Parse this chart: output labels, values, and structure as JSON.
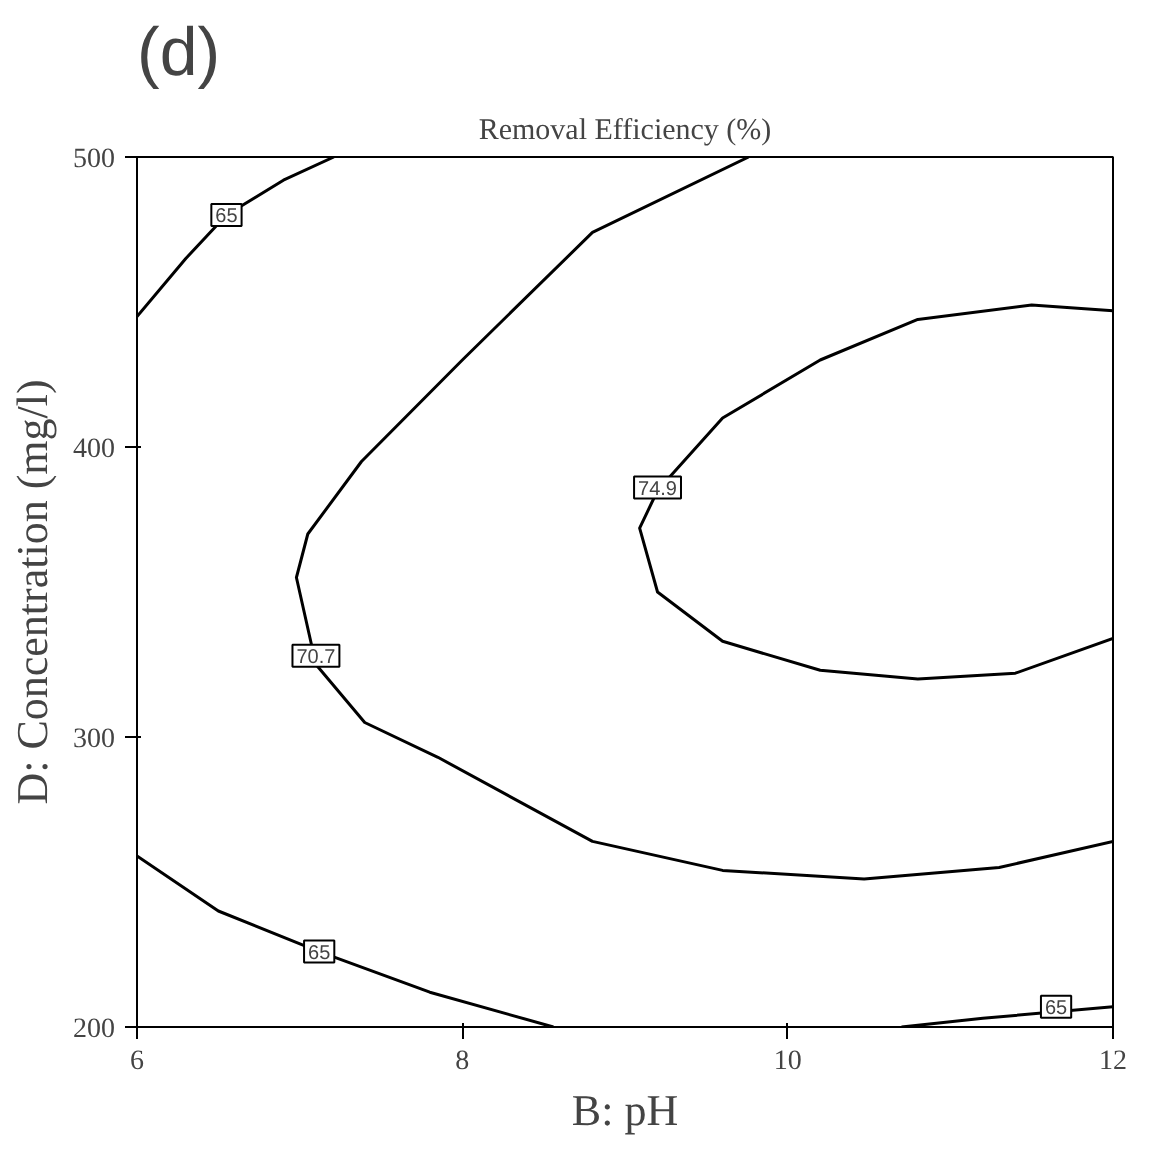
{
  "chart_data": {
    "type": "line",
    "title": "Removal Efficiency (%)",
    "xlabel": "B: pH",
    "ylabel": "D: Concentration (mg/l)",
    "xlim": [
      6,
      12
    ],
    "ylim": [
      200,
      500
    ],
    "xticks": [
      6,
      8,
      10,
      12
    ],
    "yticks": [
      200,
      300,
      400,
      500
    ],
    "grid": false,
    "marker": "none",
    "line_style": "solid",
    "series": [
      {
        "color": "#000000",
        "x": [
          6,
          6.3,
          6.55,
          6.9,
          7.21
        ],
        "values": [
          445,
          465,
          480,
          492,
          500
        ]
      },
      {
        "color": "#000000",
        "x": [
          6,
          6.5,
          7.12,
          7.8,
          8.56
        ],
        "values": [
          259,
          240,
          226,
          212,
          200
        ]
      },
      {
        "color": "#000000",
        "x": [
          10.7,
          11.2,
          12
        ],
        "values": [
          200,
          203,
          207
        ]
      },
      {
        "color": "#000000",
        "x": [
          9.76,
          8.8,
          8.0,
          7.38,
          7.05,
          6.98,
          7.1,
          7.4,
          7.85,
          8.8,
          9.6,
          10.47,
          11.3,
          12
        ],
        "values": [
          500,
          474,
          430,
          395,
          370,
          355,
          325,
          305,
          293,
          264,
          254,
          251,
          255,
          264
        ]
      },
      {
        "color": "#000000",
        "x": [
          12,
          11.5,
          10.8,
          10.2,
          9.6,
          9.2,
          9.09,
          9.2,
          9.6,
          10.2,
          10.8,
          11.4,
          12
        ],
        "values": [
          447,
          449,
          444,
          430,
          410,
          385,
          372,
          350,
          333,
          323,
          320,
          322,
          334
        ]
      }
    ],
    "annotations": [
      "(d)",
      {
        "text": "65",
        "x": 6.55,
        "y": 480
      },
      {
        "text": "70.7",
        "x": 7.1,
        "y": 328
      },
      {
        "text": "74.9",
        "x": 9.2,
        "y": 386
      },
      {
        "text": "65",
        "x": 7.12,
        "y": 226
      },
      {
        "text": "65",
        "x": 11.65,
        "y": 207
      }
    ]
  }
}
